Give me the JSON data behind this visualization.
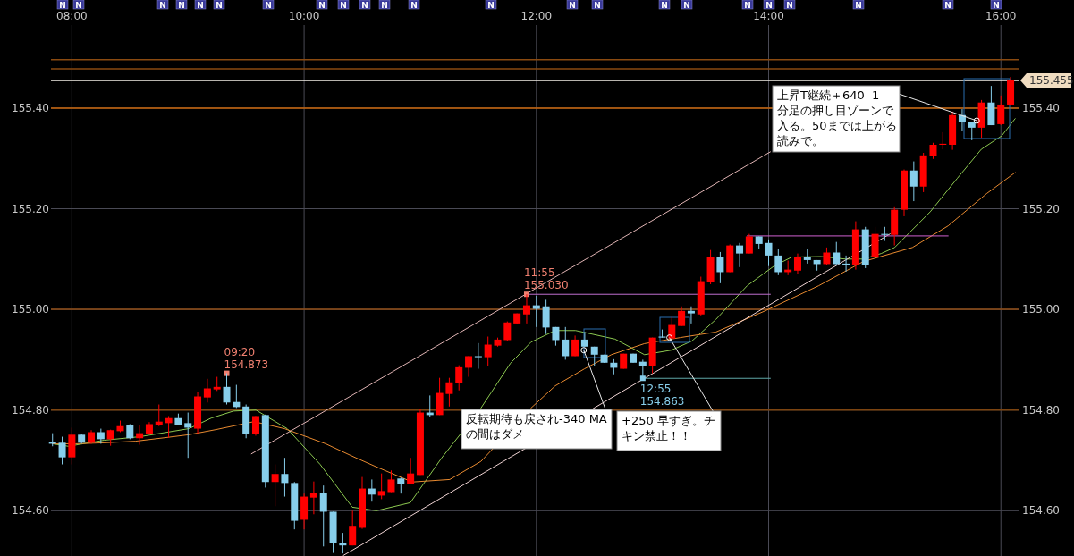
{
  "chart_data": {
    "type": "candlestick",
    "x": [
      7.8333,
      7.9167,
      8,
      8.0833,
      8.1667,
      8.25,
      8.3333,
      8.4167,
      8.5,
      8.5833,
      8.6667,
      8.75,
      8.8333,
      8.9167,
      9,
      9.0833,
      9.1667,
      9.25,
      9.3333,
      9.4167,
      9.5,
      9.5833,
      9.6667,
      9.75,
      9.8333,
      9.9167,
      10,
      10.0833,
      10.1667,
      10.25,
      10.3333,
      10.4167,
      10.5,
      10.5833,
      10.6667,
      10.75,
      10.8333,
      10.9167,
      11,
      11.0833,
      11.1667,
      11.25,
      11.3333,
      11.4167,
      11.5,
      11.5833,
      11.6667,
      11.75,
      11.8333,
      11.9167,
      12,
      12.0833,
      12.1667,
      12.25,
      12.3333,
      12.4167,
      12.5,
      12.5833,
      12.6667,
      12.75,
      12.8333,
      12.9167,
      13,
      13.0833,
      13.1667,
      13.25,
      13.3333,
      13.4167,
      13.5,
      13.5833,
      13.6667,
      13.75,
      13.8333,
      13.9167,
      14,
      14.0833,
      14.1667,
      14.25,
      14.3333,
      14.4167,
      14.5,
      14.5833,
      14.6667,
      14.75,
      14.8333,
      14.9167,
      15,
      15.0833,
      15.1667,
      15.25,
      15.3333,
      15.4167,
      15.5,
      15.5833,
      15.6667,
      15.75,
      15.8333,
      15.9167,
      16,
      16.0833
    ],
    "ohlc": [
      [
        154.737,
        154.754,
        154.728,
        154.733
      ],
      [
        154.735,
        154.747,
        154.692,
        154.706
      ],
      [
        154.706,
        154.765,
        154.692,
        154.751
      ],
      [
        154.751,
        154.752,
        154.733,
        154.735
      ],
      [
        154.735,
        154.76,
        154.733,
        154.756
      ],
      [
        154.756,
        154.763,
        154.733,
        154.742
      ],
      [
        154.742,
        154.761,
        154.729,
        154.76
      ],
      [
        154.758,
        154.779,
        154.756,
        154.768
      ],
      [
        154.77,
        154.772,
        154.742,
        154.744
      ],
      [
        154.744,
        154.77,
        154.731,
        154.754
      ],
      [
        154.752,
        154.776,
        154.751,
        154.772
      ],
      [
        154.77,
        154.811,
        154.768,
        154.777
      ],
      [
        154.774,
        154.788,
        154.745,
        154.784
      ],
      [
        154.784,
        154.793,
        154.77,
        154.77
      ],
      [
        154.774,
        154.795,
        154.705,
        154.765
      ],
      [
        154.763,
        154.836,
        154.752,
        154.827
      ],
      [
        154.825,
        154.862,
        154.815,
        154.843
      ],
      [
        154.841,
        154.866,
        154.838,
        154.846
      ],
      [
        154.846,
        154.873,
        154.811,
        154.815
      ],
      [
        154.816,
        154.85,
        154.804,
        154.806
      ],
      [
        154.807,
        154.811,
        154.744,
        154.752
      ],
      [
        154.752,
        154.788,
        154.749,
        154.788
      ],
      [
        154.79,
        154.791,
        154.646,
        154.657
      ],
      [
        154.657,
        154.692,
        154.609,
        154.673
      ],
      [
        154.673,
        154.705,
        154.628,
        154.655
      ],
      [
        154.655,
        154.657,
        154.563,
        154.58
      ],
      [
        154.582,
        154.634,
        154.563,
        154.628
      ],
      [
        154.626,
        154.658,
        154.593,
        154.635
      ],
      [
        154.635,
        154.65,
        154.529,
        154.598
      ],
      [
        154.598,
        154.598,
        154.516,
        154.536
      ],
      [
        154.536,
        154.556,
        154.515,
        154.531
      ],
      [
        154.531,
        154.6,
        154.531,
        154.57
      ],
      [
        154.566,
        154.667,
        154.564,
        154.644
      ],
      [
        154.644,
        154.662,
        154.618,
        154.632
      ],
      [
        154.63,
        154.674,
        154.623,
        154.639
      ],
      [
        154.637,
        154.68,
        154.637,
        154.662
      ],
      [
        154.664,
        154.666,
        154.634,
        154.653
      ],
      [
        154.653,
        154.705,
        154.653,
        154.674
      ],
      [
        154.671,
        154.802,
        154.671,
        154.795
      ],
      [
        154.795,
        154.829,
        154.786,
        154.79
      ],
      [
        154.79,
        154.864,
        154.79,
        154.834
      ],
      [
        154.832,
        154.864,
        154.807,
        154.855
      ],
      [
        154.854,
        154.889,
        154.839,
        154.885
      ],
      [
        154.884,
        154.907,
        154.866,
        154.907
      ],
      [
        154.907,
        154.933,
        154.882,
        154.905
      ],
      [
        154.905,
        154.946,
        154.887,
        154.93
      ],
      [
        154.928,
        154.944,
        154.926,
        154.94
      ],
      [
        154.939,
        154.976,
        154.937,
        154.974
      ],
      [
        154.972,
        154.992,
        154.97,
        154.992
      ],
      [
        154.99,
        155.03,
        154.972,
        155.008
      ],
      [
        155.008,
        155.027,
        154.965,
        155.001
      ],
      [
        155.006,
        155.019,
        154.951,
        154.964
      ],
      [
        154.965,
        154.965,
        154.928,
        154.939
      ],
      [
        154.94,
        154.965,
        154.9,
        154.907
      ],
      [
        154.907,
        154.948,
        154.907,
        154.94
      ],
      [
        154.94,
        154.955,
        154.926,
        154.926
      ],
      [
        154.926,
        154.926,
        154.887,
        154.91
      ],
      [
        154.91,
        154.91,
        154.894,
        154.894
      ],
      [
        154.894,
        154.901,
        154.871,
        154.884
      ],
      [
        154.882,
        154.912,
        154.882,
        154.912
      ],
      [
        154.912,
        154.912,
        154.894,
        154.894
      ],
      [
        154.896,
        154.9,
        154.863,
        154.887
      ],
      [
        154.887,
        154.944,
        154.873,
        154.944
      ],
      [
        154.946,
        154.96,
        154.944,
        154.944
      ],
      [
        154.942,
        154.985,
        154.942,
        154.969
      ],
      [
        154.967,
        155.006,
        154.967,
        154.997
      ],
      [
        154.997,
        155.006,
        154.972,
        154.992
      ],
      [
        154.99,
        155.065,
        154.988,
        155.056
      ],
      [
        155.054,
        155.118,
        155.05,
        155.105
      ],
      [
        155.105,
        155.114,
        155.052,
        155.074
      ],
      [
        155.074,
        155.129,
        155.074,
        155.127
      ],
      [
        155.127,
        155.132,
        155.084,
        155.111
      ],
      [
        155.111,
        155.15,
        155.111,
        155.145
      ],
      [
        155.145,
        155.145,
        155.121,
        155.13
      ],
      [
        155.132,
        155.139,
        155.086,
        155.107
      ],
      [
        155.107,
        155.121,
        155.068,
        155.074
      ],
      [
        155.074,
        155.097,
        155.068,
        155.079
      ],
      [
        155.077,
        155.111,
        155.07,
        155.104
      ],
      [
        155.104,
        155.12,
        155.091,
        155.098
      ],
      [
        155.098,
        155.098,
        155.077,
        155.09
      ],
      [
        155.09,
        155.123,
        155.088,
        155.113
      ],
      [
        155.113,
        155.134,
        155.088,
        155.09
      ],
      [
        155.091,
        155.107,
        155.075,
        155.088
      ],
      [
        155.088,
        155.175,
        155.079,
        155.159
      ],
      [
        155.159,
        155.164,
        155.082,
        155.088
      ],
      [
        155.104,
        155.164,
        155.1,
        155.15
      ],
      [
        155.15,
        155.164,
        155.136,
        155.148
      ],
      [
        155.148,
        155.203,
        155.127,
        155.198
      ],
      [
        155.198,
        155.278,
        155.185,
        155.276
      ],
      [
        155.276,
        155.294,
        155.215,
        155.244
      ],
      [
        155.244,
        155.311,
        155.233,
        155.306
      ],
      [
        155.304,
        155.331,
        155.299,
        155.327
      ],
      [
        155.327,
        155.352,
        155.318,
        155.329
      ],
      [
        155.327,
        155.393,
        155.317,
        155.386
      ],
      [
        155.386,
        155.398,
        155.354,
        155.372
      ],
      [
        155.372,
        155.372,
        155.336,
        155.361
      ],
      [
        155.361,
        155.416,
        155.341,
        155.411
      ],
      [
        155.411,
        155.444,
        155.366,
        155.366
      ],
      [
        155.368,
        155.425,
        155.366,
        155.407
      ],
      [
        155.407,
        155.462,
        155.407,
        155.455
      ]
    ],
    "xlim": [
      7.82,
      16.16
    ],
    "xticks": [
      {
        "value": 8,
        "label": "08:00"
      },
      {
        "value": 10,
        "label": "10:00"
      },
      {
        "value": 12,
        "label": "12:00"
      },
      {
        "value": 14,
        "label": "14:00"
      },
      {
        "value": 16,
        "label": "16:00"
      }
    ],
    "ylim": [
      154.51,
      155.565
    ],
    "yticks": [
      {
        "value": 154.6,
        "label": "154.60"
      },
      {
        "value": 154.8,
        "label": "154.80"
      },
      {
        "value": 155,
        "label": "155.00"
      },
      {
        "value": 155.2,
        "label": "155.20"
      },
      {
        "value": 155.4,
        "label": "155.40"
      }
    ],
    "y2lim": [
      154.51,
      155.565
    ],
    "y2ticks": [
      {
        "value": 154.6,
        "label": "154.60"
      },
      {
        "value": 154.8,
        "label": "154.80"
      },
      {
        "value": 155,
        "label": "155.00"
      },
      {
        "value": 155.2,
        "label": "155.20"
      },
      {
        "value": 155.4,
        "label": "155.40"
      }
    ],
    "grid": true,
    "series": [
      {
        "type": "line",
        "color": "#8cc850",
        "x": [
          7.831,
          7.969,
          8.277,
          8.585,
          9.008,
          9.2,
          9.392,
          9.585,
          9.854,
          10.138,
          10.415,
          10.623,
          10.915,
          11.185,
          11.523,
          11.777,
          11.954,
          12.162,
          12.338,
          12.677,
          12.931,
          13.162,
          13.338,
          13.546,
          13.815,
          14.046,
          14.2,
          14.454,
          14.662,
          14.815,
          14.969,
          15.085,
          15.392,
          15.623,
          15.831,
          16.008,
          16.123
        ],
        "values": [
          154.733,
          154.728,
          154.74,
          154.747,
          154.763,
          154.784,
          154.798,
          154.8,
          154.763,
          154.692,
          154.607,
          154.6,
          154.616,
          154.705,
          154.804,
          154.893,
          154.935,
          154.958,
          154.958,
          154.941,
          154.91,
          154.919,
          154.937,
          154.98,
          155.047,
          155.086,
          155.104,
          155.105,
          155.1,
          155.1,
          155.111,
          155.123,
          155.194,
          155.26,
          155.318,
          155.345,
          155.379
        ]
      },
      {
        "type": "line",
        "color": "#e88a30",
        "x": [
          7.831,
          8.031,
          8.292,
          8.546,
          8.8,
          9.008,
          9.238,
          9.569,
          9.831,
          10.185,
          10.446,
          10.623,
          10.931,
          11.254,
          11.523,
          11.954,
          12.162,
          12.415,
          12.646,
          12.931,
          13.238,
          13.546,
          13.969,
          14.431,
          14.815,
          15.238,
          15.546,
          15.877,
          16.123
        ],
        "values": [
          154.733,
          154.733,
          154.735,
          154.738,
          154.745,
          154.751,
          154.761,
          154.777,
          154.763,
          154.733,
          154.705,
          154.687,
          154.657,
          154.662,
          154.698,
          154.804,
          154.848,
          154.882,
          154.91,
          154.932,
          154.944,
          154.955,
          154.997,
          155.047,
          155.095,
          155.123,
          155.166,
          155.23,
          155.272
        ]
      },
      {
        "type": "line",
        "color": "#e0b4b4",
        "x": [
          9.546,
          14.015
        ],
        "values": [
          154.713,
          155.313
        ]
      },
      {
        "type": "line",
        "color": "#f0d4d4",
        "x": [
          10.338,
          15.046
        ],
        "values": [
          154.511,
          155.15
        ]
      },
      {
        "type": "line",
        "color": "#c070d0",
        "x": [
          11.923,
          14.015
        ],
        "values": [
          155.03,
          155.03
        ]
      },
      {
        "type": "line",
        "color": "#d060d0",
        "x": [
          13.815,
          15.546
        ],
        "values": [
          155.146,
          155.146
        ]
      },
      {
        "type": "line",
        "color": "#60a8a8",
        "x": [
          12.915,
          14.015
        ],
        "values": [
          154.863,
          154.863
        ]
      }
    ],
    "ref_lines": [
      {
        "axis": "y",
        "value": 155.496,
        "color": "#8a4a10"
      },
      {
        "axis": "y",
        "value": 155.478,
        "color": "#8a4a10"
      },
      {
        "axis": "y",
        "value": 155.4,
        "color": "#c8640a"
      },
      {
        "axis": "y",
        "value": 155.0,
        "color": "#904c14"
      },
      {
        "axis": "y",
        "value": 154.8,
        "color": "#7c4410"
      },
      {
        "axis": "y",
        "value": 155.455,
        "color": "#f4f0e8",
        "label": "155.455"
      }
    ],
    "annotations": [
      "N",
      "N",
      "N",
      "N",
      "N",
      "N",
      "N",
      "N",
      "N",
      "N",
      "N",
      "N",
      "N",
      "N",
      "N",
      "N",
      "N",
      "N",
      "N",
      "N",
      "N",
      "N",
      "N",
      {
        "text": "09:20\n154.873",
        "x": 9.3333,
        "y": 154.873
      },
      {
        "text": "11:55\n155.030",
        "x": 11.9167,
        "y": 155.03
      },
      {
        "text": "12:55\n154.863",
        "x": 12.9167,
        "y": 154.863
      },
      {
        "text": "上昇T継続＋640  1分足の押し目ゾーンで入る。50までは上がる読みで。",
        "x": 15.792,
        "y": 155.375
      },
      {
        "text": "反転期待も戻され-340 MAの間はダメ",
        "x": 12.408,
        "y": 154.919
      },
      {
        "text": "+250 早すぎ。チキン禁止！！",
        "x": 13.146,
        "y": 154.944
      }
    ]
  }
}
